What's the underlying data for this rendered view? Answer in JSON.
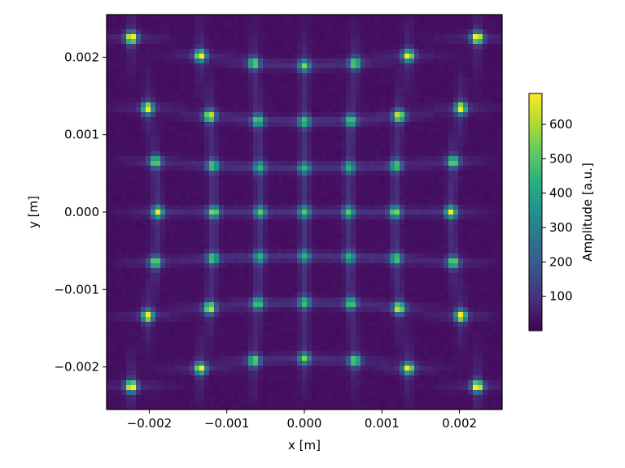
{
  "chart_data": {
    "type": "heatmap",
    "title": "",
    "xlabel": "x [m]",
    "ylabel": "y [m]",
    "xlim": [
      -0.00255,
      0.00255
    ],
    "ylim": [
      -0.00255,
      0.00255
    ],
    "x_ticks": [
      -0.002,
      -0.001,
      0.0,
      0.001,
      0.002
    ],
    "x_tick_labels": [
      "−0.002",
      "−0.001",
      "0.000",
      "0.001",
      "0.002"
    ],
    "y_ticks": [
      -0.002,
      -0.001,
      0.0,
      0.001,
      0.002
    ],
    "y_tick_labels": [
      "−0.002",
      "−0.001",
      "0.000",
      "0.001",
      "0.002"
    ],
    "grid": false,
    "colormap": "viridis",
    "colorbar": {
      "label": "Amplitude [a.u.]",
      "range": [
        0,
        690
      ],
      "ticks": [
        100,
        200,
        300,
        400,
        500,
        600
      ],
      "tick_labels": [
        "100",
        "200",
        "300",
        "400",
        "500",
        "600"
      ]
    },
    "background_level": 20,
    "peaks": [
      {
        "x": -0.00223,
        "y": 0.00225,
        "v": 690
      },
      {
        "x": -0.00134,
        "y": 0.00202,
        "v": 620
      },
      {
        "x": -0.00065,
        "y": 0.00192,
        "v": 470
      },
      {
        "x": 0.0,
        "y": 0.00189,
        "v": 420
      },
      {
        "x": 0.00065,
        "y": 0.00192,
        "v": 470
      },
      {
        "x": 0.00134,
        "y": 0.00202,
        "v": 620
      },
      {
        "x": 0.00223,
        "y": 0.00225,
        "v": 690
      },
      {
        "x": -0.00202,
        "y": 0.00134,
        "v": 660
      },
      {
        "x": -0.00122,
        "y": 0.00124,
        "v": 580
      },
      {
        "x": -0.0006,
        "y": 0.00118,
        "v": 420
      },
      {
        "x": 0.0,
        "y": 0.00117,
        "v": 380
      },
      {
        "x": 0.0006,
        "y": 0.00118,
        "v": 420
      },
      {
        "x": 0.00122,
        "y": 0.00124,
        "v": 580
      },
      {
        "x": 0.00202,
        "y": 0.00134,
        "v": 660
      },
      {
        "x": -0.00192,
        "y": 0.00065,
        "v": 480
      },
      {
        "x": -0.00118,
        "y": 0.0006,
        "v": 420
      },
      {
        "x": -0.00058,
        "y": 0.00058,
        "v": 330
      },
      {
        "x": 0.0,
        "y": 0.00057,
        "v": 320
      },
      {
        "x": 0.00058,
        "y": 0.00058,
        "v": 330
      },
      {
        "x": 0.00118,
        "y": 0.0006,
        "v": 420
      },
      {
        "x": 0.00192,
        "y": 0.00065,
        "v": 480
      },
      {
        "x": -0.00189,
        "y": 0.0,
        "v": 560
      },
      {
        "x": -0.00117,
        "y": 0.0,
        "v": 470
      },
      {
        "x": -0.00057,
        "y": 0.0,
        "v": 380
      },
      {
        "x": 0.0,
        "y": 0.0,
        "v": 360
      },
      {
        "x": 0.00057,
        "y": 0.0,
        "v": 380
      },
      {
        "x": 0.00117,
        "y": 0.0,
        "v": 470
      },
      {
        "x": 0.00189,
        "y": 0.0,
        "v": 560
      },
      {
        "x": -0.00192,
        "y": -0.00065,
        "v": 480
      },
      {
        "x": -0.00118,
        "y": -0.0006,
        "v": 420
      },
      {
        "x": -0.00058,
        "y": -0.00058,
        "v": 330
      },
      {
        "x": 0.0,
        "y": -0.00057,
        "v": 320
      },
      {
        "x": 0.00058,
        "y": -0.00058,
        "v": 330
      },
      {
        "x": 0.00118,
        "y": -0.0006,
        "v": 420
      },
      {
        "x": 0.00192,
        "y": -0.00065,
        "v": 480
      },
      {
        "x": -0.00202,
        "y": -0.00134,
        "v": 660
      },
      {
        "x": -0.00122,
        "y": -0.00124,
        "v": 580
      },
      {
        "x": -0.0006,
        "y": -0.00118,
        "v": 420
      },
      {
        "x": 0.0,
        "y": -0.00117,
        "v": 380
      },
      {
        "x": 0.0006,
        "y": -0.00118,
        "v": 420
      },
      {
        "x": 0.00122,
        "y": -0.00124,
        "v": 580
      },
      {
        "x": 0.00202,
        "y": -0.00134,
        "v": 660
      },
      {
        "x": -0.00223,
        "y": -0.00225,
        "v": 690
      },
      {
        "x": -0.00134,
        "y": -0.00202,
        "v": 620
      },
      {
        "x": -0.00065,
        "y": -0.00192,
        "v": 470
      },
      {
        "x": 0.0,
        "y": -0.00189,
        "v": 420
      },
      {
        "x": 0.00065,
        "y": -0.00192,
        "v": 470
      },
      {
        "x": 0.00134,
        "y": -0.00202,
        "v": 620
      },
      {
        "x": 0.00223,
        "y": -0.00225,
        "v": 690
      }
    ]
  }
}
